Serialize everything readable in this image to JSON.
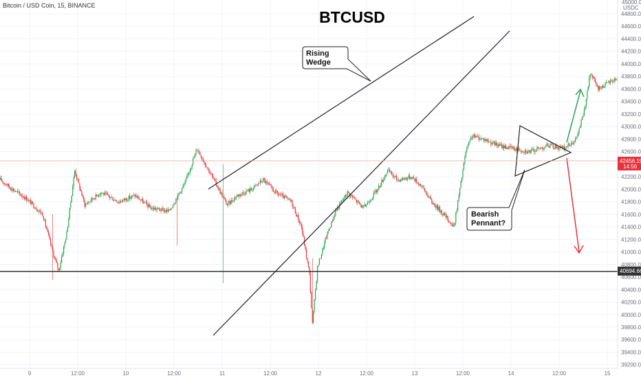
{
  "header": {
    "symbol": "Bitcoin / USD Coin, 15, BINANCE"
  },
  "chart_data": {
    "type": "candlestick",
    "title": "BTCUSD",
    "currency_label": "USDC",
    "y_top_label": "45000.00",
    "ylim": [
      39100,
      45000
    ],
    "y_ticks": [
      39200,
      39400,
      39600,
      39800,
      40000,
      40200,
      40400,
      40600,
      40800,
      41000,
      41200,
      41400,
      41600,
      41800,
      42000,
      42200,
      42400,
      42600,
      42800,
      43000,
      43200,
      43400,
      43600,
      43800,
      44000,
      44200,
      44400,
      44600,
      44800
    ],
    "x_ticks": [
      "9",
      "12:00",
      "10",
      "12:00",
      "11",
      "12:00",
      "12",
      "12:00",
      "13",
      "12:00",
      "14",
      "12:00",
      "15"
    ],
    "candles_per_tick": 48,
    "support_level": 40694.66,
    "last_price": 42456.19,
    "countdown": "14:56",
    "price_path": [
      [
        0,
        42150
      ],
      [
        12,
        42000
      ],
      [
        26,
        41850
      ],
      [
        42,
        41600
      ],
      [
        52,
        41000
      ],
      [
        58,
        40700
      ],
      [
        66,
        41300
      ],
      [
        74,
        42300
      ],
      [
        84,
        41750
      ],
      [
        100,
        41950
      ],
      [
        118,
        41800
      ],
      [
        134,
        41900
      ],
      [
        150,
        41700
      ],
      [
        168,
        41650
      ],
      [
        184,
        42100
      ],
      [
        196,
        42650
      ],
      [
        206,
        42350
      ],
      [
        216,
        42050
      ],
      [
        226,
        41750
      ],
      [
        236,
        41900
      ],
      [
        250,
        42000
      ],
      [
        262,
        42150
      ],
      [
        274,
        41950
      ],
      [
        290,
        41800
      ],
      [
        300,
        41400
      ],
      [
        308,
        40650
      ],
      [
        311,
        39850
      ],
      [
        316,
        40750
      ],
      [
        324,
        41200
      ],
      [
        334,
        41650
      ],
      [
        346,
        41950
      ],
      [
        362,
        41700
      ],
      [
        376,
        42000
      ],
      [
        386,
        42300
      ],
      [
        396,
        42150
      ],
      [
        410,
        42200
      ],
      [
        420,
        42050
      ],
      [
        430,
        41800
      ],
      [
        442,
        41600
      ],
      [
        452,
        41400
      ],
      [
        458,
        42000
      ],
      [
        464,
        42600
      ],
      [
        470,
        42850
      ],
      [
        482,
        42800
      ],
      [
        496,
        42700
      ],
      [
        512,
        42650
      ],
      [
        528,
        42600
      ],
      [
        546,
        42700
      ],
      [
        562,
        42650
      ],
      [
        574,
        42800
      ],
      [
        582,
        43250
      ],
      [
        588,
        43850
      ],
      [
        596,
        43600
      ],
      [
        606,
        43700
      ],
      [
        618,
        43800
      ],
      [
        628,
        43850
      ],
      [
        638,
        43900
      ],
      [
        648,
        43650
      ],
      [
        660,
        43600
      ],
      [
        674,
        43650
      ],
      [
        690,
        43700
      ],
      [
        706,
        43800
      ],
      [
        716,
        43700
      ],
      [
        726,
        43900
      ],
      [
        733,
        44100
      ],
      [
        738,
        43500
      ],
      [
        744,
        43000
      ],
      [
        752,
        42800
      ],
      [
        762,
        42700
      ],
      [
        774,
        42650
      ],
      [
        786,
        42700
      ],
      [
        800,
        42550
      ],
      [
        804,
        42456.19
      ]
    ],
    "annotations": [
      {
        "text": "Rising\nWedge"
      },
      {
        "text": "Bearish\nPennant?"
      }
    ],
    "colors": {
      "up": "#27a34b",
      "down": "#e83434",
      "wedge": "#1c1c1c",
      "support": "#333333",
      "up_arrow": "#2aa454",
      "down_arrow": "#e8313a",
      "price_tag": "#e8313a",
      "support_tag": "#333333"
    }
  }
}
